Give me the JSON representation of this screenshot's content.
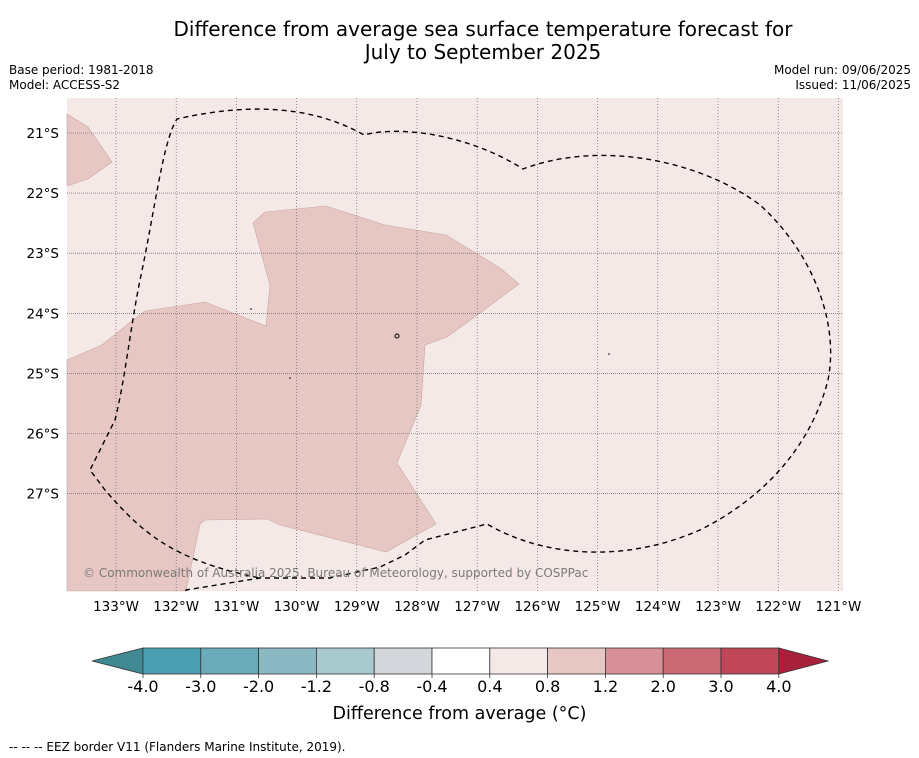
{
  "header": {
    "title_line1": "Difference from average sea surface temperature forecast for",
    "title_line2": "July to September 2025",
    "base_period": "Base period: 1981-2018",
    "model": "Model: ACCESS-S2",
    "model_run": "Model run: 09/06/2025",
    "issued": "Issued: 11/06/2025"
  },
  "map": {
    "lon_labels": [
      "133°W",
      "132°W",
      "131°W",
      "130°W",
      "129°W",
      "128°W",
      "127°W",
      "126°W",
      "125°W",
      "124°W",
      "123°W",
      "122°W",
      "121°W"
    ],
    "lat_labels": [
      "21°S",
      "22°S",
      "23°S",
      "24°S",
      "25°S",
      "26°S",
      "27°S"
    ],
    "copyright": "© Commonwealth of Australia 2025, Bureau of Meteorology, supported by COSPPac",
    "background_band": "0.4 to 0.8",
    "contour_band": "0.8 to 1.2",
    "colors": {
      "band_0_4_0_8": "#f5e9e8",
      "band_0_8_1_2": "#e7c7c3",
      "eez_border": "#000000"
    }
  },
  "colorbar": {
    "ticks": [
      "-4.0",
      "-3.0",
      "-2.0",
      "-1.2",
      "-0.8",
      "-0.4",
      "0.4",
      "0.8",
      "1.2",
      "2.0",
      "3.0",
      "4.0"
    ],
    "colors": [
      "#3f8a92",
      "#4aa0b2",
      "#6aacba",
      "#8ab8c3",
      "#a8c9cd",
      "#d3d7db",
      "#ffffff",
      "#f5e9e8",
      "#e7c7c3",
      "#d88f97",
      "#cb6a74",
      "#c04758",
      "#a8213b"
    ],
    "label": "Difference from average (°C)"
  },
  "footnote": "--  --  -- EEZ border V11 (Flanders Marine Institute, 2019)."
}
